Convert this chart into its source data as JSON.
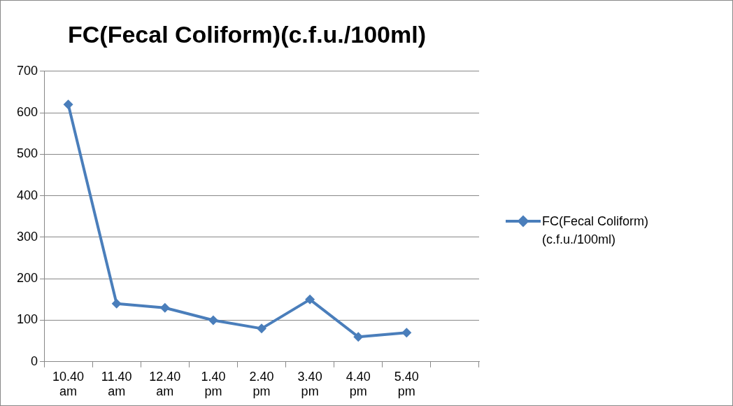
{
  "chart_data": {
    "type": "line",
    "title": "FC(Fecal Coliform)(c.f.u./100ml)",
    "categories": [
      "10.40 am",
      "11.40 am",
      "12.40 am",
      "1.40 pm",
      "2.40 pm",
      "3.40 pm",
      "4.40 pm",
      "5.40 pm",
      null
    ],
    "series": [
      {
        "name": "FC(Fecal Coliform)(c.f.u./100ml)",
        "color": "#4a7ebb",
        "values": [
          620,
          140,
          130,
          100,
          80,
          150,
          60,
          70,
          null
        ]
      }
    ],
    "ylim": [
      0,
      700
    ],
    "yticks": [
      0,
      100,
      200,
      300,
      400,
      500,
      600,
      700
    ],
    "grid": "y",
    "legend": "right",
    "marker": "diamond",
    "line_style": "solid"
  }
}
